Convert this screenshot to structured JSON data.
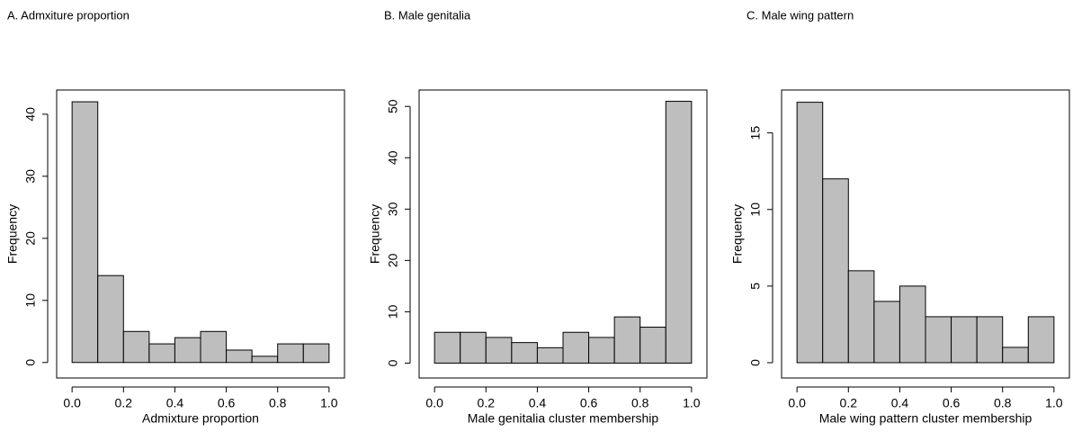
{
  "chart_data": [
    {
      "type": "histogram",
      "title": "A. Admxiture proportion",
      "x_label": "Admixture proportion",
      "y_label": "Frequency",
      "bins": [
        0,
        0.1,
        0.2,
        0.3,
        0.4,
        0.5,
        0.6,
        0.7,
        0.8,
        0.9,
        1
      ],
      "values": [
        42,
        14,
        5,
        3,
        4,
        5,
        2,
        1,
        3,
        3
      ],
      "color": "#bebebe",
      "xlim": [
        -0.06,
        1.06
      ],
      "xticks": [
        {
          "value": 0,
          "label": "0.0"
        },
        0.2,
        0.4,
        0.6,
        0.8,
        {
          "value": 1,
          "label": "1.0"
        }
      ],
      "ylim": [
        -2.5,
        43.9
      ],
      "yticks": [
        0,
        10,
        20,
        30,
        40
      ]
    },
    {
      "type": "histogram",
      "title": "B. Male genitalia",
      "x_label": "Male genitalia cluster membership",
      "y_label": "Frequency",
      "bins": [
        0,
        0.1,
        0.2,
        0.3,
        0.4,
        0.5,
        0.6,
        0.7,
        0.8,
        0.9,
        1
      ],
      "values": [
        6,
        6,
        5,
        4,
        3,
        6,
        5,
        9,
        7,
        51
      ],
      "color": "#bebebe",
      "xlim": [
        -0.06,
        1.06
      ],
      "xticks": [
        {
          "value": 0,
          "label": "0.0"
        },
        0.2,
        0.4,
        0.6,
        0.8,
        {
          "value": 1,
          "label": "1.0"
        }
      ],
      "ylim": [
        -2.9,
        53.2
      ],
      "yticks": [
        0,
        10,
        20,
        30,
        40,
        50
      ]
    },
    {
      "type": "histogram",
      "title": "C. Male wing pattern",
      "x_label": "Male wing pattern cluster membership",
      "y_label": "Frequency",
      "bins": [
        0,
        0.1,
        0.2,
        0.3,
        0.4,
        0.5,
        0.6,
        0.7,
        0.8,
        0.9,
        1
      ],
      "values": [
        17,
        12,
        6,
        4,
        5,
        3,
        3,
        3,
        1,
        3
      ],
      "color": "#bebebe",
      "xlim": [
        -0.06,
        1.06
      ],
      "xticks": [
        {
          "value": 0,
          "label": "0.0"
        },
        0.2,
        0.4,
        0.6,
        0.8,
        {
          "value": 1,
          "label": "1.0"
        }
      ],
      "ylim": [
        -1.0,
        17.8
      ],
      "yticks": [
        0,
        5,
        10,
        15
      ]
    }
  ]
}
